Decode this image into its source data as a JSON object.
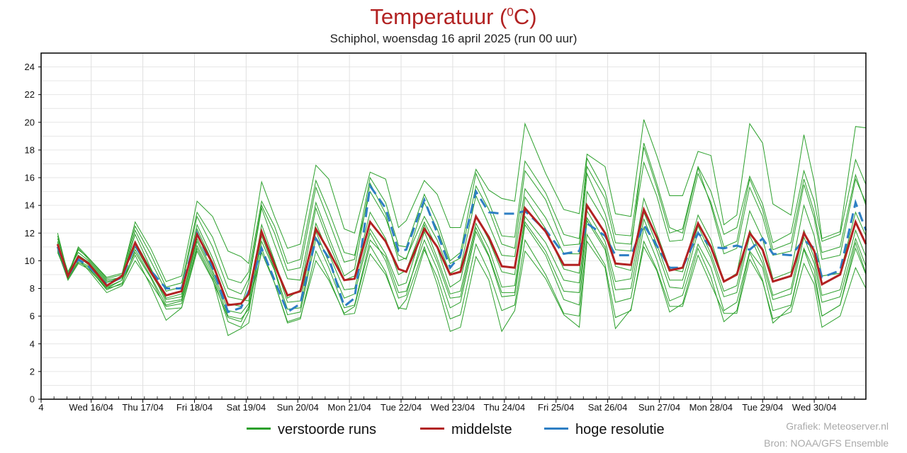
{
  "title_main": "Temperatuur (",
  "title_sup": "0",
  "title_end": "C)",
  "subtitle": "Schiphol, woensdag 16 april 2025 (run 00 uur)",
  "colors": {
    "title": "#b22222",
    "ensemble": "#2ca02c",
    "mean": "#b22222",
    "hires": "#2e7fc4"
  },
  "legend": {
    "ensemble": "verstoorde runs",
    "mean": "middelste",
    "hires": "hoge resolutie"
  },
  "credits": {
    "line1": "Grafiek: Meteoserver.nl",
    "line2": "Bron: NOAA/GFS Ensemble"
  },
  "chart_data": {
    "type": "line",
    "ylim": [
      0,
      25
    ],
    "yticks": [
      0,
      2,
      4,
      6,
      8,
      10,
      12,
      14,
      16,
      18,
      20,
      22,
      24
    ],
    "grid": true,
    "x_unit": "days since 16/04 00h",
    "xlim": [
      -0.97,
      15
    ],
    "xtick_labels": [
      "4",
      "Wed 16/04",
      "Thu 17/04",
      "Fri 18/04",
      "Sat 19/04",
      "Sun 20/04",
      "Mon 21/04",
      "Tue 22/04",
      "Wed 23/04",
      "Thu 24/04",
      "Fri 25/04",
      "Sat 26/04",
      "Sun 27/04",
      "Mon 28/04",
      "Tue 29/04",
      "Wed 30/04"
    ],
    "xtick_pos": [
      -0.97,
      0,
      1,
      2,
      3,
      4,
      5,
      6,
      7,
      8,
      9,
      10,
      11,
      12,
      13,
      14
    ],
    "x": [
      -0.65,
      -0.45,
      -0.25,
      -0.05,
      0.3,
      0.6,
      0.85,
      1.15,
      1.45,
      1.75,
      2.05,
      2.35,
      2.65,
      2.9,
      3.05,
      3.3,
      3.55,
      3.8,
      4.05,
      4.35,
      4.6,
      4.9,
      5.1,
      5.4,
      5.7,
      5.95,
      6.1,
      6.45,
      6.7,
      6.95,
      7.15,
      7.45,
      7.7,
      7.95,
      8.2,
      8.4,
      8.8,
      9.15,
      9.45,
      9.6,
      9.95,
      10.15,
      10.45,
      10.7,
      10.95,
      11.2,
      11.45,
      11.75,
      12.0,
      12.25,
      12.5,
      12.75,
      13.0,
      13.2,
      13.55,
      13.8,
      14.0,
      14.15,
      14.5,
      14.8,
      15.0
    ],
    "series": [
      {
        "name": "middelste",
        "values": [
          11.2,
          8.9,
          10.3,
          9.8,
          8.2,
          8.9,
          11.3,
          9.2,
          7.5,
          7.8,
          11.9,
          9.8,
          6.8,
          6.9,
          7.6,
          12.1,
          9.7,
          7.5,
          7.8,
          12.3,
          10.7,
          8.6,
          8.7,
          12.8,
          11.4,
          9.4,
          9.2,
          12.3,
          11.0,
          9.0,
          9.2,
          13.2,
          11.7,
          9.6,
          9.5,
          13.8,
          12.1,
          9.7,
          9.7,
          14.0,
          12.0,
          9.8,
          9.7,
          13.7,
          11.7,
          9.3,
          9.5,
          12.7,
          11.0,
          8.5,
          9.0,
          12.0,
          10.8,
          8.5,
          8.9,
          12.0,
          10.7,
          8.3,
          9.0,
          12.8,
          11.2
        ]
      },
      {
        "name": "hoge resolutie",
        "values": [
          11.0,
          8.9,
          10.1,
          9.6,
          8.3,
          8.8,
          11.1,
          9.3,
          8.0,
          8.0,
          12.0,
          9.5,
          6.3,
          6.6,
          7.8,
          10.9,
          8.6,
          6.3,
          6.9,
          11.6,
          10.2,
          6.7,
          7.3,
          15.4,
          13.8,
          10.7,
          10.8,
          14.4,
          12.0,
          9.5,
          10.4,
          15.0,
          13.5,
          13.4,
          13.4,
          13.6,
          12.2,
          10.5,
          10.7,
          12.7,
          11.8,
          10.4,
          10.4,
          12.6,
          11.1,
          9.5,
          9.5,
          12.0,
          11.0,
          10.9,
          11.1,
          10.8,
          11.6,
          10.5,
          10.4,
          11.5,
          10.9,
          8.8,
          9.3,
          14.2,
          12.2
        ]
      },
      {
        "name": "verstoorde runs",
        "values": [
          12.0,
          9.0,
          11.0,
          10.2,
          8.8,
          9.1,
          12.8,
          10.9,
          8.5,
          8.9,
          14.3,
          13.2,
          10.7,
          10.3,
          9.8,
          15.7,
          13.2,
          10.9,
          11.2,
          16.9,
          15.9,
          12.3,
          12.0,
          16.4,
          15.9,
          12.4,
          12.9,
          15.8,
          14.8,
          12.4,
          12.4,
          16.6,
          15.1,
          14.5,
          14.3,
          19.9,
          16.3,
          13.7,
          13.4,
          17.7,
          16.8,
          13.4,
          13.2,
          20.2,
          17.6,
          14.7,
          14.7,
          17.9,
          17.6,
          12.6,
          13.3,
          19.9,
          18.5,
          14.1,
          13.3,
          19.1,
          15.7,
          11.6,
          12.1,
          19.7,
          19.6
        ]
      },
      {
        "name": "verstoorde runs",
        "values": [
          10.9,
          9.1,
          10.1,
          9.3,
          7.7,
          8.2,
          10.0,
          8.4,
          6.7,
          6.9,
          11.1,
          8.9,
          5.6,
          5.2,
          6.3,
          11.4,
          9.3,
          6.1,
          6.3,
          11.6,
          9.5,
          6.6,
          6.8,
          11.5,
          10.3,
          7.7,
          7.8,
          11.5,
          9.4,
          6.6,
          7.0,
          12.1,
          10.3,
          7.4,
          7.5,
          12.6,
          10.4,
          7.2,
          6.8,
          12.9,
          10.8,
          7.0,
          7.3,
          12.4,
          10.1,
          7.1,
          7.5,
          11.2,
          9.5,
          6.4,
          7.0,
          10.7,
          9.5,
          6.4,
          6.8,
          10.9,
          9.3,
          6.0,
          6.8,
          11.3,
          9.1
        ]
      },
      {
        "name": "verstoorde runs",
        "values": [
          11.6,
          9.2,
          10.6,
          10.0,
          8.5,
          8.7,
          11.9,
          9.5,
          7.2,
          7.4,
          12.3,
          9.9,
          6.9,
          6.7,
          8.4,
          13.8,
          11.2,
          8.7,
          8.6,
          14.2,
          11.7,
          8.9,
          9.4,
          15.6,
          13.4,
          10.0,
          10.2,
          13.2,
          11.5,
          9.1,
          9.5,
          14.7,
          12.6,
          10.4,
          10.3,
          15.2,
          13.1,
          10.5,
          10.5,
          16.3,
          13.4,
          10.8,
          10.7,
          18.5,
          15.6,
          12.4,
          12.0,
          16.7,
          14.0,
          10.5,
          10.9,
          15.3,
          13.2,
          10.4,
          10.7,
          15.5,
          13.1,
          10.1,
          10.4,
          15.9,
          14.2
        ]
      },
      {
        "name": "verstoorde runs",
        "values": [
          10.7,
          8.6,
          9.8,
          9.4,
          8.0,
          8.6,
          10.6,
          8.8,
          6.5,
          6.6,
          10.7,
          8.6,
          5.9,
          5.6,
          6.7,
          10.6,
          8.4,
          5.5,
          5.8,
          10.7,
          8.8,
          6.1,
          6.2,
          10.5,
          9.0,
          6.6,
          6.5,
          10.8,
          8.8,
          5.8,
          6.1,
          11.2,
          9.2,
          6.4,
          6.8,
          11.5,
          9.0,
          6.2,
          6.0,
          11.9,
          9.7,
          5.9,
          6.4,
          11.4,
          9.4,
          6.7,
          6.7,
          10.4,
          8.3,
          6.2,
          6.2,
          10.1,
          8.5,
          5.8,
          6.3,
          9.8,
          8.3,
          5.2,
          6.0,
          9.5,
          8.0
        ]
      },
      {
        "name": "verstoorde runs",
        "values": [
          11.3,
          8.8,
          10.4,
          9.9,
          8.4,
          8.9,
          11.0,
          9.1,
          7.3,
          7.6,
          12.6,
          10.2,
          7.4,
          7.2,
          7.1,
          12.6,
          10.0,
          7.3,
          7.9,
          13.8,
          11.3,
          8.6,
          8.9,
          13.5,
          11.6,
          9.0,
          9.3,
          12.8,
          10.9,
          8.1,
          8.6,
          13.3,
          11.5,
          9.2,
          9.0,
          14.6,
          12.3,
          9.4,
          9.1,
          15.0,
          12.8,
          9.6,
          9.3,
          14.5,
          12.0,
          9.4,
          9.2,
          13.3,
          11.5,
          8.5,
          9.1,
          13.6,
          11.6,
          8.7,
          9.2,
          14.0,
          11.8,
          8.9,
          9.1,
          13.5,
          11.8
        ]
      },
      {
        "name": "verstoorde runs",
        "values": [
          11.8,
          9.0,
          10.9,
          10.1,
          8.6,
          8.8,
          12.2,
          10.0,
          7.8,
          8.1,
          13.2,
          11.0,
          8.0,
          7.6,
          8.7,
          14.0,
          12.0,
          9.3,
          9.5,
          15.3,
          12.9,
          9.9,
          10.1,
          16.0,
          14.2,
          11.1,
          11.0,
          14.8,
          12.8,
          10.0,
          10.6,
          16.3,
          14.2,
          11.8,
          11.7,
          17.2,
          14.9,
          11.9,
          11.6,
          17.4,
          15.0,
          11.9,
          11.8,
          18.2,
          15.3,
          12.0,
          12.3,
          16.8,
          15.0,
          11.9,
          12.4,
          16.1,
          14.1,
          11.3,
          12.0,
          16.5,
          14.3,
          11.4,
          11.9,
          17.3,
          15.5
        ]
      },
      {
        "name": "verstoorde runs",
        "values": [
          10.8,
          8.7,
          9.9,
          9.5,
          7.9,
          8.4,
          10.4,
          8.2,
          5.7,
          6.6,
          10.9,
          8.7,
          4.6,
          5.1,
          5.5,
          10.9,
          8.4,
          5.6,
          5.9,
          10.0,
          8.6,
          6.2,
          6.7,
          11.1,
          9.2,
          6.5,
          7.2,
          11.0,
          8.3,
          4.9,
          5.2,
          10.3,
          8.6,
          4.9,
          6.4,
          10.7,
          8.7,
          6.1,
          5.2,
          11.4,
          9.5,
          5.1,
          6.5,
          11.0,
          9.3,
          6.3,
          6.9,
          10.9,
          8.8,
          5.6,
          6.4,
          10.6,
          8.6,
          5.5,
          6.7,
          10.8,
          8.8,
          6.0,
          6.8,
          10.9,
          9.0
        ]
      },
      {
        "name": "verstoorde runs",
        "values": [
          11.1,
          9.0,
          10.3,
          9.7,
          8.1,
          8.6,
          11.4,
          9.4,
          7.0,
          7.2,
          11.6,
          9.3,
          6.4,
          6.2,
          6.9,
          12.2,
          9.9,
          7.0,
          7.1,
          12.7,
          10.5,
          7.9,
          8.0,
          12.3,
          10.5,
          8.2,
          8.4,
          12.6,
          10.2,
          7.6,
          7.8,
          12.7,
          10.9,
          8.1,
          8.2,
          13.2,
          11.3,
          8.6,
          8.4,
          13.6,
          11.4,
          8.5,
          8.7,
          13.5,
          11.2,
          8.6,
          8.6,
          12.5,
          10.5,
          7.8,
          8.2,
          12.2,
          10.2,
          7.5,
          8.0,
          12.2,
          10.2,
          7.5,
          7.9,
          12.2,
          10.3
        ]
      },
      {
        "name": "verstoorde runs",
        "values": [
          11.4,
          8.9,
          10.8,
          10.2,
          8.7,
          9.0,
          12.5,
          10.5,
          8.1,
          8.4,
          13.5,
          11.7,
          8.7,
          8.4,
          9.2,
          14.3,
          12.5,
          9.8,
          10.1,
          15.8,
          13.6,
          10.6,
          10.4,
          15.0,
          13.1,
          10.4,
          10.1,
          14.2,
          12.3,
          9.8,
          10.2,
          15.4,
          13.7,
          11.2,
          10.9,
          16.5,
          14.4,
          11.1,
          11.2,
          16.8,
          14.5,
          11.3,
          11.2,
          17.1,
          14.7,
          11.4,
          11.5,
          16.3,
          14.2,
          11.0,
          11.4,
          15.9,
          13.7,
          10.8,
          11.3,
          15.9,
          13.5,
          10.6,
          11.0,
          16.2,
          14.0
        ]
      },
      {
        "name": "verstoorde runs",
        "values": [
          10.6,
          8.8,
          10.0,
          9.6,
          8.0,
          8.3,
          10.8,
          8.9,
          6.8,
          7.1,
          11.4,
          9.1,
          6.0,
          5.8,
          6.5,
          11.8,
          9.4,
          6.5,
          6.6,
          12.1,
          9.9,
          7.3,
          7.6,
          12.0,
          10.0,
          7.3,
          7.5,
          12.1,
          9.9,
          7.3,
          7.4,
          12.4,
          10.4,
          7.7,
          7.7,
          12.8,
          10.7,
          7.8,
          7.7,
          13.1,
          11.0,
          7.9,
          8.0,
          13.0,
          10.8,
          8.1,
          8.0,
          12.1,
          10.2,
          7.4,
          7.7,
          11.8,
          9.8,
          7.2,
          7.6,
          11.7,
          9.8,
          7.0,
          7.4,
          11.6,
          9.6
        ]
      }
    ]
  }
}
